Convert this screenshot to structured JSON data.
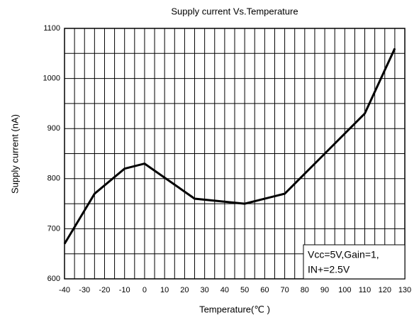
{
  "chart_data": {
    "type": "line",
    "title": "Supply current Vs.Temperature",
    "x_label": "Temperature(℃ )",
    "y_label": "Supply current (nA)",
    "x": [
      -40,
      -25,
      -10,
      0,
      25,
      50,
      70,
      90,
      110,
      125
    ],
    "series": [
      {
        "name": "Supply current",
        "color": "#000000",
        "values": [
          670,
          770,
          820,
          830,
          760,
          750,
          770,
          850,
          930,
          1060
        ]
      }
    ],
    "xlim": [
      -40,
      130
    ],
    "xticks": [
      -40,
      -30,
      -20,
      -10,
      0,
      10,
      20,
      30,
      40,
      50,
      60,
      70,
      80,
      90,
      100,
      110,
      120,
      130
    ],
    "ylim": [
      600,
      1100
    ],
    "yticks": [
      600,
      700,
      800,
      900,
      1000,
      1100
    ],
    "grid": true,
    "minor_grid": true,
    "annotation": [
      "Vcc=5V,Gain=1,",
      "IN+=2.5V"
    ]
  }
}
